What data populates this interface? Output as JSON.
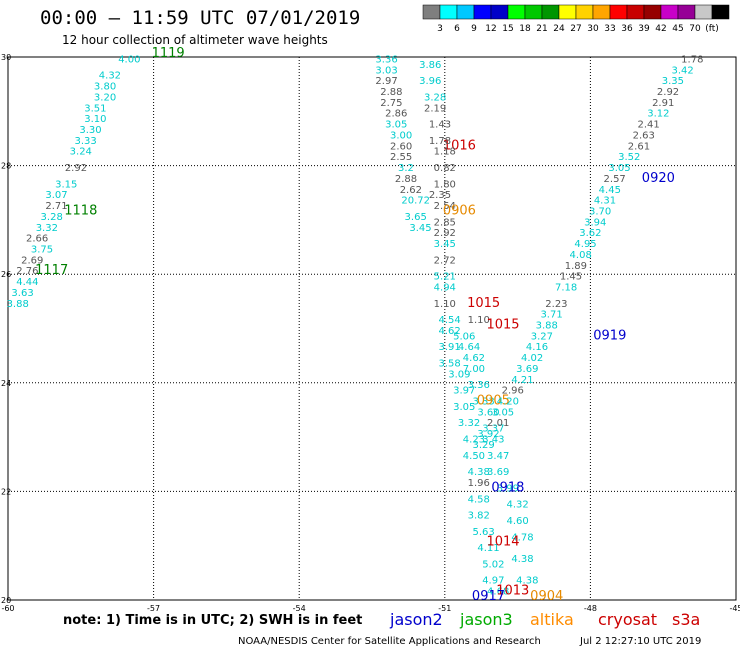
{
  "header": {
    "title": "00:00 — 11:59 UTC 07/01/2019",
    "subtitle": "12 hour collection of altimeter wave heights"
  },
  "colorbar": {
    "colors": [
      "#7f7f7f",
      "#00ffff",
      "#00c8ff",
      "#0000ff",
      "#0000c8",
      "#00ff00",
      "#00c800",
      "#009600",
      "#ffff00",
      "#ffd200",
      "#ffa500",
      "#ff0000",
      "#c80000",
      "#960000",
      "#c800c8",
      "#960096",
      "#c8c8c8",
      "#000000"
    ],
    "labels": [
      "3",
      "6",
      "9",
      "12",
      "15",
      "18",
      "21",
      "24",
      "27",
      "30",
      "33",
      "36",
      "39",
      "42",
      "45",
      "70",
      "(ft)"
    ]
  },
  "chart_data": {
    "type": "scatter",
    "xlim": [
      -60,
      -45
    ],
    "ylim": [
      20,
      30
    ],
    "x_ticks": [
      -60,
      -57,
      -54,
      -51,
      -48,
      -45
    ],
    "y_ticks": [
      20,
      22,
      24,
      26,
      28,
      30
    ],
    "grid": true,
    "legend_position": "bottom",
    "series": [
      {
        "name": "jason2",
        "color": "#0000cc",
        "pass_labels": [
          {
            "text": "1016",
            "lon": -50.7,
            "lat": 28.3,
            "color": "#cc0000"
          },
          {
            "text": "1015",
            "lon": -49.8,
            "lat": 25.0,
            "color": "#cc0000"
          },
          {
            "text": "1015",
            "lon": -50.2,
            "lat": 25.4,
            "color": "#cc0000"
          }
        ],
        "points": [
          [
            -50.3,
            25.1,
            "1.10"
          ],
          [
            -50.6,
            24.8,
            "5.06"
          ],
          [
            -50.5,
            24.6,
            "4.64"
          ],
          [
            -50.4,
            24.4,
            "4.62"
          ],
          [
            -50.4,
            24.2,
            "7.00"
          ],
          [
            -50.3,
            23.9,
            "3.36"
          ],
          [
            -50.2,
            23.6,
            "3.33"
          ],
          [
            -50.1,
            23.4,
            "3.60"
          ],
          [
            -50.0,
            23.1,
            "3.37"
          ],
          [
            -50.0,
            22.9,
            "3.43"
          ],
          [
            -49.9,
            22.6,
            "3.47"
          ],
          [
            -49.9,
            22.3,
            "3.69"
          ],
          [
            -49.7,
            22.0,
            "3.99"
          ],
          [
            -49.5,
            21.7,
            "4.32"
          ],
          [
            -49.5,
            21.4,
            "4.60"
          ],
          [
            -49.4,
            21.1,
            "4.78"
          ],
          [
            -49.4,
            20.7,
            "4.38"
          ],
          [
            -49.3,
            20.3,
            "4.38"
          ]
        ]
      },
      {
        "name": "jason3",
        "color": "#00aa00",
        "pass_labels": [
          {
            "text": "1119",
            "lon": -56.7,
            "lat": 30.0,
            "color": "#008000"
          },
          {
            "text": "1118",
            "lon": -58.5,
            "lat": 27.1,
            "color": "#008000"
          },
          {
            "text": "1117",
            "lon": -59.1,
            "lat": 26.0,
            "color": "#008000"
          }
        ],
        "points": [
          [
            -57.5,
            29.9,
            "4.00"
          ],
          [
            -57.9,
            29.6,
            "4.32"
          ],
          [
            -58.0,
            29.4,
            "3.80"
          ],
          [
            -58.0,
            29.2,
            "3.20"
          ],
          [
            -58.2,
            29.0,
            "3.51"
          ],
          [
            -58.2,
            28.8,
            "3.10"
          ],
          [
            -58.3,
            28.6,
            "3.30"
          ],
          [
            -58.4,
            28.4,
            "3.33"
          ],
          [
            -58.5,
            28.2,
            "3.24"
          ],
          [
            -58.6,
            27.9,
            "2.92"
          ],
          [
            -58.8,
            27.6,
            "3.15"
          ],
          [
            -59.0,
            27.4,
            "3.07"
          ],
          [
            -59.0,
            27.2,
            "2.71"
          ],
          [
            -59.1,
            27.0,
            "3.28"
          ],
          [
            -59.2,
            26.8,
            "3.32"
          ],
          [
            -59.4,
            26.6,
            "2.66"
          ],
          [
            -59.3,
            26.4,
            "3.75"
          ],
          [
            -59.5,
            26.2,
            "2.69"
          ],
          [
            -59.6,
            26.0,
            "2.76"
          ],
          [
            -59.6,
            25.8,
            "4.44"
          ],
          [
            -59.7,
            25.6,
            "3.63"
          ],
          [
            -59.8,
            25.4,
            "3.88"
          ]
        ]
      },
      {
        "name": "altika",
        "color": "#ff8c00",
        "pass_labels": [
          {
            "text": "0906",
            "lon": -50.7,
            "lat": 27.1,
            "color": "#e68a00"
          },
          {
            "text": "0905",
            "lon": -50.0,
            "lat": 23.6,
            "color": "#e68a00"
          },
          {
            "text": "0904",
            "lon": -48.9,
            "lat": 20.0,
            "color": "#e68a00"
          }
        ],
        "points": [
          [
            -51.3,
            29.8,
            "3.86"
          ],
          [
            -51.3,
            29.5,
            "3.96"
          ],
          [
            -51.2,
            29.2,
            "3.28"
          ],
          [
            -51.2,
            29.0,
            "2.19"
          ],
          [
            -51.1,
            28.7,
            "1.43"
          ],
          [
            -51.1,
            28.4,
            "1.78"
          ],
          [
            -51.0,
            28.2,
            "1.18"
          ],
          [
            -51.0,
            27.9,
            "0.82"
          ],
          [
            -51.0,
            27.6,
            "1.80"
          ],
          [
            -51.1,
            27.4,
            "2.35"
          ],
          [
            -51.0,
            27.2,
            "2.54"
          ],
          [
            -51.0,
            26.9,
            "2.85"
          ],
          [
            -51.0,
            26.7,
            "2.92"
          ],
          [
            -51.0,
            26.5,
            "3.45"
          ],
          [
            -51.0,
            26.2,
            "2.72"
          ],
          [
            -51.0,
            25.9,
            "5.21"
          ],
          [
            -51.0,
            25.7,
            "4.94"
          ],
          [
            -51.0,
            25.4,
            "1.10"
          ],
          [
            -50.9,
            25.1,
            "4.54"
          ],
          [
            -50.9,
            24.9,
            "4.62"
          ],
          [
            -50.9,
            24.6,
            "3.91"
          ],
          [
            -50.9,
            24.3,
            "3.58"
          ],
          [
            -50.7,
            24.1,
            "3.09"
          ],
          [
            -50.6,
            23.8,
            "3.97"
          ],
          [
            -50.6,
            23.5,
            "3.05"
          ],
          [
            -50.5,
            23.2,
            "3.32"
          ],
          [
            -50.4,
            22.9,
            "4.23"
          ],
          [
            -50.4,
            22.6,
            "4.50"
          ],
          [
            -50.3,
            22.3,
            "4.38"
          ],
          [
            -50.3,
            22.1,
            "1.96"
          ],
          [
            -50.3,
            21.8,
            "4.58"
          ],
          [
            -50.3,
            21.5,
            "3.82"
          ],
          [
            -50.2,
            21.2,
            "5.63"
          ],
          [
            -50.1,
            20.9,
            "4.11"
          ],
          [
            -50.0,
            20.6,
            "5.02"
          ],
          [
            -50.0,
            20.3,
            "4.97"
          ],
          [
            -49.9,
            20.1,
            "4.68"
          ]
        ]
      },
      {
        "name": "cryosat",
        "color": "#cc0000",
        "pass_labels": [
          {
            "text": "1014",
            "lon": -49.8,
            "lat": 21.0,
            "color": "#cc0000"
          },
          {
            "text": "1013",
            "lon": -49.6,
            "lat": 20.1,
            "color": "#cc0000"
          }
        ],
        "points": [
          [
            -52.2,
            29.9,
            "3.36"
          ],
          [
            -52.2,
            29.7,
            "3.03"
          ],
          [
            -52.2,
            29.5,
            "2.97"
          ],
          [
            -52.1,
            29.3,
            "2.88"
          ],
          [
            -52.1,
            29.1,
            "2.75"
          ],
          [
            -52.0,
            28.9,
            "2.86"
          ],
          [
            -52.0,
            28.7,
            "3.05"
          ],
          [
            -51.9,
            28.5,
            "3.00"
          ],
          [
            -51.9,
            28.3,
            "2.60"
          ],
          [
            -51.9,
            28.1,
            "2.55"
          ],
          [
            -51.8,
            27.9,
            "3.2"
          ],
          [
            -51.8,
            27.7,
            "2.88"
          ],
          [
            -51.7,
            27.5,
            "2.62"
          ],
          [
            -51.6,
            27.3,
            "20.72"
          ],
          [
            -51.6,
            27.0,
            "3.65"
          ],
          [
            -51.5,
            26.8,
            "3.45"
          ]
        ]
      },
      {
        "name": "s3a",
        "color": "#cc0000",
        "pass_labels": [
          {
            "text": "0920",
            "lon": -46.6,
            "lat": 27.7,
            "color": "#0000cc"
          },
          {
            "text": "0919",
            "lon": -47.6,
            "lat": 24.8,
            "color": "#0000cc"
          },
          {
            "text": "0918",
            "lon": -49.7,
            "lat": 22.0,
            "color": "#0000cc"
          },
          {
            "text": "0917",
            "lon": -50.1,
            "lat": 20.0,
            "color": "#0000cc"
          }
        ],
        "points": [
          [
            -45.9,
            29.9,
            "1.78"
          ],
          [
            -46.1,
            29.7,
            "3.42"
          ],
          [
            -46.3,
            29.5,
            "3.35"
          ],
          [
            -46.4,
            29.3,
            "2.92"
          ],
          [
            -46.5,
            29.1,
            "2.91"
          ],
          [
            -46.6,
            28.9,
            "3.12"
          ],
          [
            -46.8,
            28.7,
            "2.41"
          ],
          [
            -46.9,
            28.5,
            "2.63"
          ],
          [
            -47.0,
            28.3,
            "2.61"
          ],
          [
            -47.2,
            28.1,
            "3.52"
          ],
          [
            -47.4,
            27.9,
            "3.05"
          ],
          [
            -47.5,
            27.7,
            "2.57"
          ],
          [
            -47.6,
            27.5,
            "4.45"
          ],
          [
            -47.7,
            27.3,
            "4.31"
          ],
          [
            -47.8,
            27.1,
            "3.70"
          ],
          [
            -47.9,
            26.9,
            "3.94"
          ],
          [
            -48.0,
            26.7,
            "3.62"
          ],
          [
            -48.1,
            26.5,
            "4.95"
          ],
          [
            -48.2,
            26.3,
            "4.08"
          ],
          [
            -48.3,
            26.1,
            "1.89"
          ],
          [
            -48.4,
            25.9,
            "1.45"
          ],
          [
            -48.5,
            25.7,
            "7.18"
          ],
          [
            -48.7,
            25.4,
            "2.23"
          ],
          [
            -48.8,
            25.2,
            "3.71"
          ],
          [
            -48.9,
            25.0,
            "3.88"
          ],
          [
            -49.0,
            24.8,
            "3.27"
          ],
          [
            -49.1,
            24.6,
            "4.16"
          ],
          [
            -49.2,
            24.4,
            "4.02"
          ],
          [
            -49.3,
            24.2,
            "3.69"
          ],
          [
            -49.4,
            24.0,
            "4.21"
          ],
          [
            -49.6,
            23.8,
            "2.96"
          ],
          [
            -49.7,
            23.6,
            "4.20"
          ],
          [
            -49.8,
            23.4,
            "3.05"
          ],
          [
            -49.9,
            23.2,
            "2.01"
          ],
          [
            -50.1,
            23.0,
            "3.92"
          ],
          [
            -50.2,
            22.8,
            "3.29"
          ]
        ]
      }
    ]
  },
  "left_track": {
    "color": "#00cccc"
  },
  "footer": {
    "note": "note:  1) Time is in UTC;  2) SWH is in feet",
    "legend": [
      {
        "label": "jason2",
        "color": "#0000cc"
      },
      {
        "label": "jason3",
        "color": "#00aa00"
      },
      {
        "label": "altika",
        "color": "#ff8c00"
      },
      {
        "label": "cryosat",
        "color": "#cc0000"
      },
      {
        "label": "s3a",
        "color": "#cc0000"
      }
    ],
    "credit": "NOAA/NESDIS Center for Satellite Applications and Research",
    "timestamp": "Jul  2 12:27:10 UTC 2019"
  }
}
